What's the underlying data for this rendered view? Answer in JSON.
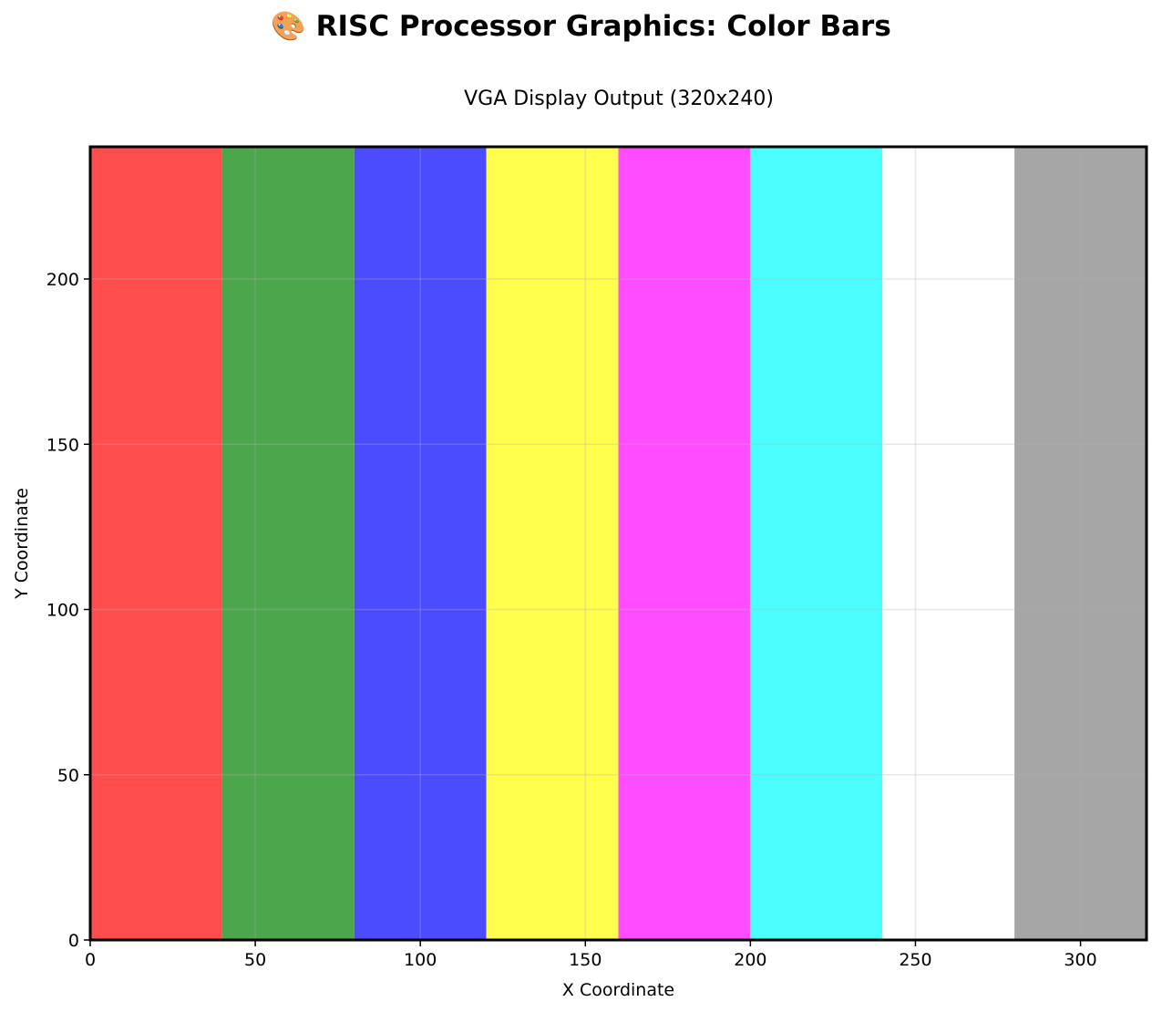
{
  "figure": {
    "suptitle": "🎨 RISC Processor Graphics: Color Bars",
    "title": "VGA Display Output (320x240)"
  },
  "chart_data": {
    "type": "bar",
    "title": "VGA Display Output (320x240)",
    "xlabel": "X Coordinate",
    "ylabel": "Y Coordinate",
    "xlim": [
      0,
      320
    ],
    "ylim": [
      0,
      240
    ],
    "grid": true,
    "x_ticks": [
      0,
      50,
      100,
      150,
      200,
      250,
      300
    ],
    "y_ticks": [
      0,
      50,
      100,
      150,
      200
    ],
    "bars": [
      {
        "x_start": 0,
        "x_end": 40,
        "height": 240,
        "color": "#ff4c4c"
      },
      {
        "x_start": 40,
        "x_end": 80,
        "height": 240,
        "color": "#4ca64c"
      },
      {
        "x_start": 80,
        "x_end": 120,
        "height": 240,
        "color": "#4c4cff"
      },
      {
        "x_start": 120,
        "x_end": 160,
        "height": 240,
        "color": "#ffff4c"
      },
      {
        "x_start": 160,
        "x_end": 200,
        "height": 240,
        "color": "#ff4cff"
      },
      {
        "x_start": 200,
        "x_end": 240,
        "height": 240,
        "color": "#4cffff"
      },
      {
        "x_start": 240,
        "x_end": 280,
        "height": 240,
        "color": "#ffffff"
      },
      {
        "x_start": 280,
        "x_end": 320,
        "height": 240,
        "color": "#a6a6a6"
      }
    ]
  }
}
